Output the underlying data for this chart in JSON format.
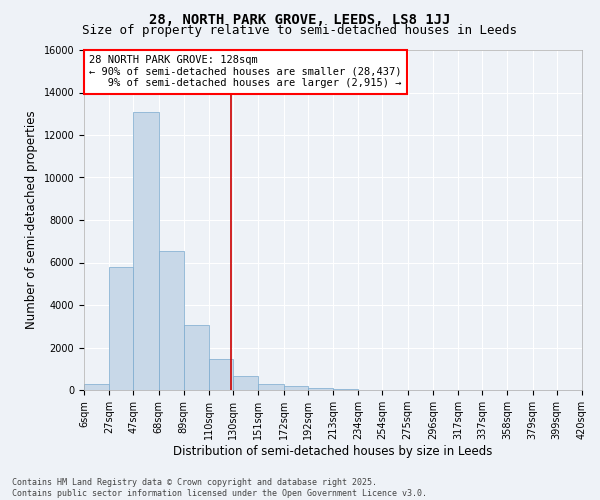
{
  "title": "28, NORTH PARK GROVE, LEEDS, LS8 1JJ",
  "subtitle": "Size of property relative to semi-detached houses in Leeds",
  "xlabel": "Distribution of semi-detached houses by size in Leeds",
  "ylabel": "Number of semi-detached properties",
  "bar_color": "#c8d8e8",
  "bar_edge_color": "#7aaace",
  "background_color": "#eef2f7",
  "grid_color": "#ffffff",
  "vline_color": "#cc0000",
  "vline_x": 128,
  "annotation_text": "28 NORTH PARK GROVE: 128sqm\n← 90% of semi-detached houses are smaller (28,437)\n   9% of semi-detached houses are larger (2,915) →",
  "bin_edges": [
    6,
    27,
    47,
    68,
    89,
    110,
    130,
    151,
    172,
    192,
    213,
    234,
    254,
    275,
    296,
    317,
    337,
    358,
    379,
    399,
    420
  ],
  "bin_labels": [
    "6sqm",
    "27sqm",
    "47sqm",
    "68sqm",
    "89sqm",
    "110sqm",
    "130sqm",
    "151sqm",
    "172sqm",
    "192sqm",
    "213sqm",
    "234sqm",
    "254sqm",
    "275sqm",
    "296sqm",
    "317sqm",
    "337sqm",
    "358sqm",
    "379sqm",
    "399sqm",
    "420sqm"
  ],
  "bar_heights": [
    280,
    5800,
    13100,
    6550,
    3050,
    1480,
    660,
    290,
    180,
    100,
    50,
    0,
    0,
    0,
    0,
    0,
    0,
    0,
    0,
    0
  ],
  "ylim": [
    0,
    16000
  ],
  "yticks": [
    0,
    2000,
    4000,
    6000,
    8000,
    10000,
    12000,
    14000,
    16000
  ],
  "footnote": "Contains HM Land Registry data © Crown copyright and database right 2025.\nContains public sector information licensed under the Open Government Licence v3.0.",
  "title_fontsize": 10,
  "subtitle_fontsize": 9,
  "label_fontsize": 8.5,
  "tick_fontsize": 7,
  "annot_fontsize": 7.5,
  "footnote_fontsize": 6
}
